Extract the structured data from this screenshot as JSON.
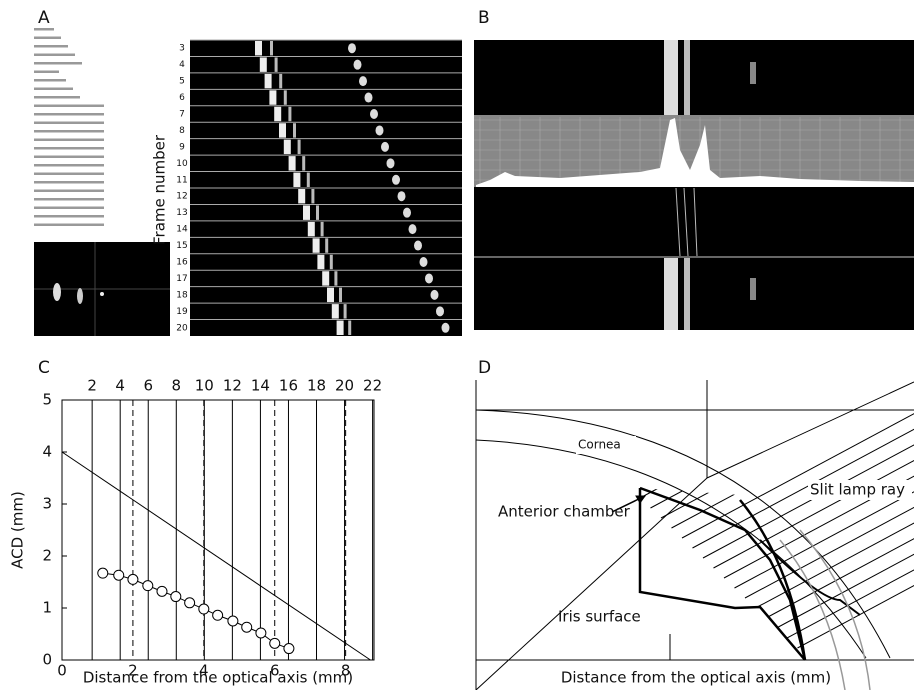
{
  "panels": [
    {
      "label": "A",
      "axis_title": "Frame number",
      "frame_numbers": [
        "3",
        "4",
        "5",
        "6",
        "7",
        "8",
        "9",
        "10",
        "11",
        "12",
        "13",
        "14",
        "15",
        "16",
        "17",
        "18",
        "19",
        "20"
      ]
    },
    {
      "label": "B"
    },
    {
      "label": "C"
    },
    {
      "label": "D",
      "labels": [
        "Cornea",
        "Anterior chamber",
        "Slit lamp ray",
        "Iris surface"
      ],
      "x_label": "Distance from the optical axis (mm)"
    }
  ],
  "chart_data": {
    "type": "scatter",
    "x_label": "Distance from the optical axis (mm)",
    "y_label": "ACD (mm)",
    "xlim": [
      0,
      8.8
    ],
    "xticks": [
      0,
      2,
      4,
      6,
      8
    ],
    "ylim": [
      0,
      5
    ],
    "yticks": [
      0,
      1,
      2,
      3,
      4,
      5
    ],
    "x2lim": [
      -0.15,
      22.1
    ],
    "x2ticks": [
      2,
      4,
      6,
      8,
      10,
      12,
      14,
      16,
      18,
      20,
      22
    ],
    "grid": true,
    "color": "#000",
    "line": {
      "x": [
        0,
        8.7
      ],
      "values": [
        4,
        0
      ]
    },
    "x": [
      1.15,
      1.6,
      2.0,
      2.42,
      2.82,
      3.21,
      3.6,
      4.0,
      4.39,
      4.82,
      5.21,
      5.61,
      6.0,
      6.4
    ],
    "values": [
      1.67,
      1.63,
      1.55,
      1.43,
      1.32,
      1.22,
      1.1,
      0.98,
      0.86,
      0.75,
      0.63,
      0.52,
      0.32,
      0.22
    ]
  }
}
